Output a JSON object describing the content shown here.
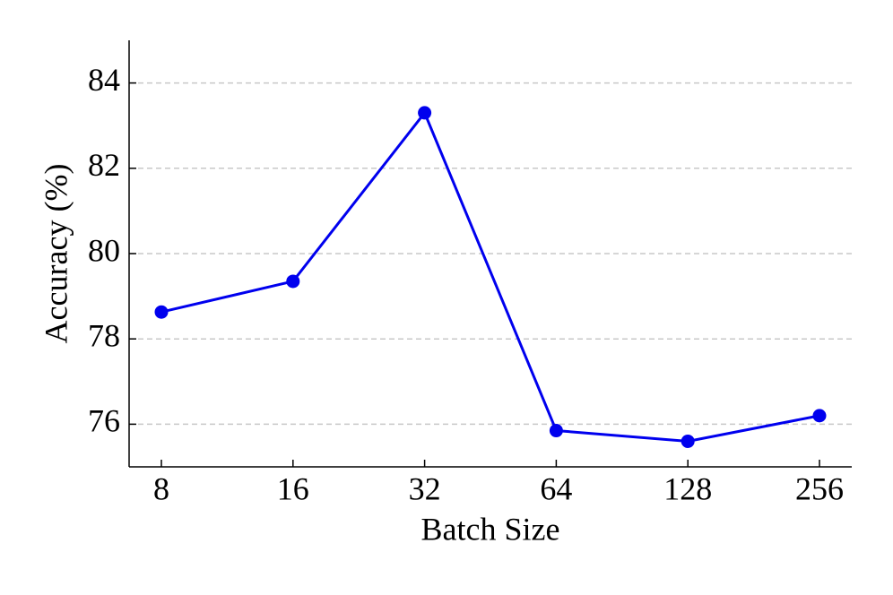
{
  "chart_data": {
    "type": "line",
    "x_label": "Batch Size",
    "y_label": "Accuracy (%)",
    "categories": [
      "8",
      "16",
      "32",
      "64",
      "128",
      "256"
    ],
    "series": [
      {
        "name": "Accuracy",
        "color": "#0000ee",
        "values": [
          78.63,
          79.35,
          83.3,
          75.85,
          75.6,
          76.2
        ]
      }
    ],
    "ylim": [
      75,
      85
    ],
    "yticks": [
      76,
      78,
      80,
      82,
      84
    ],
    "grid": true
  }
}
